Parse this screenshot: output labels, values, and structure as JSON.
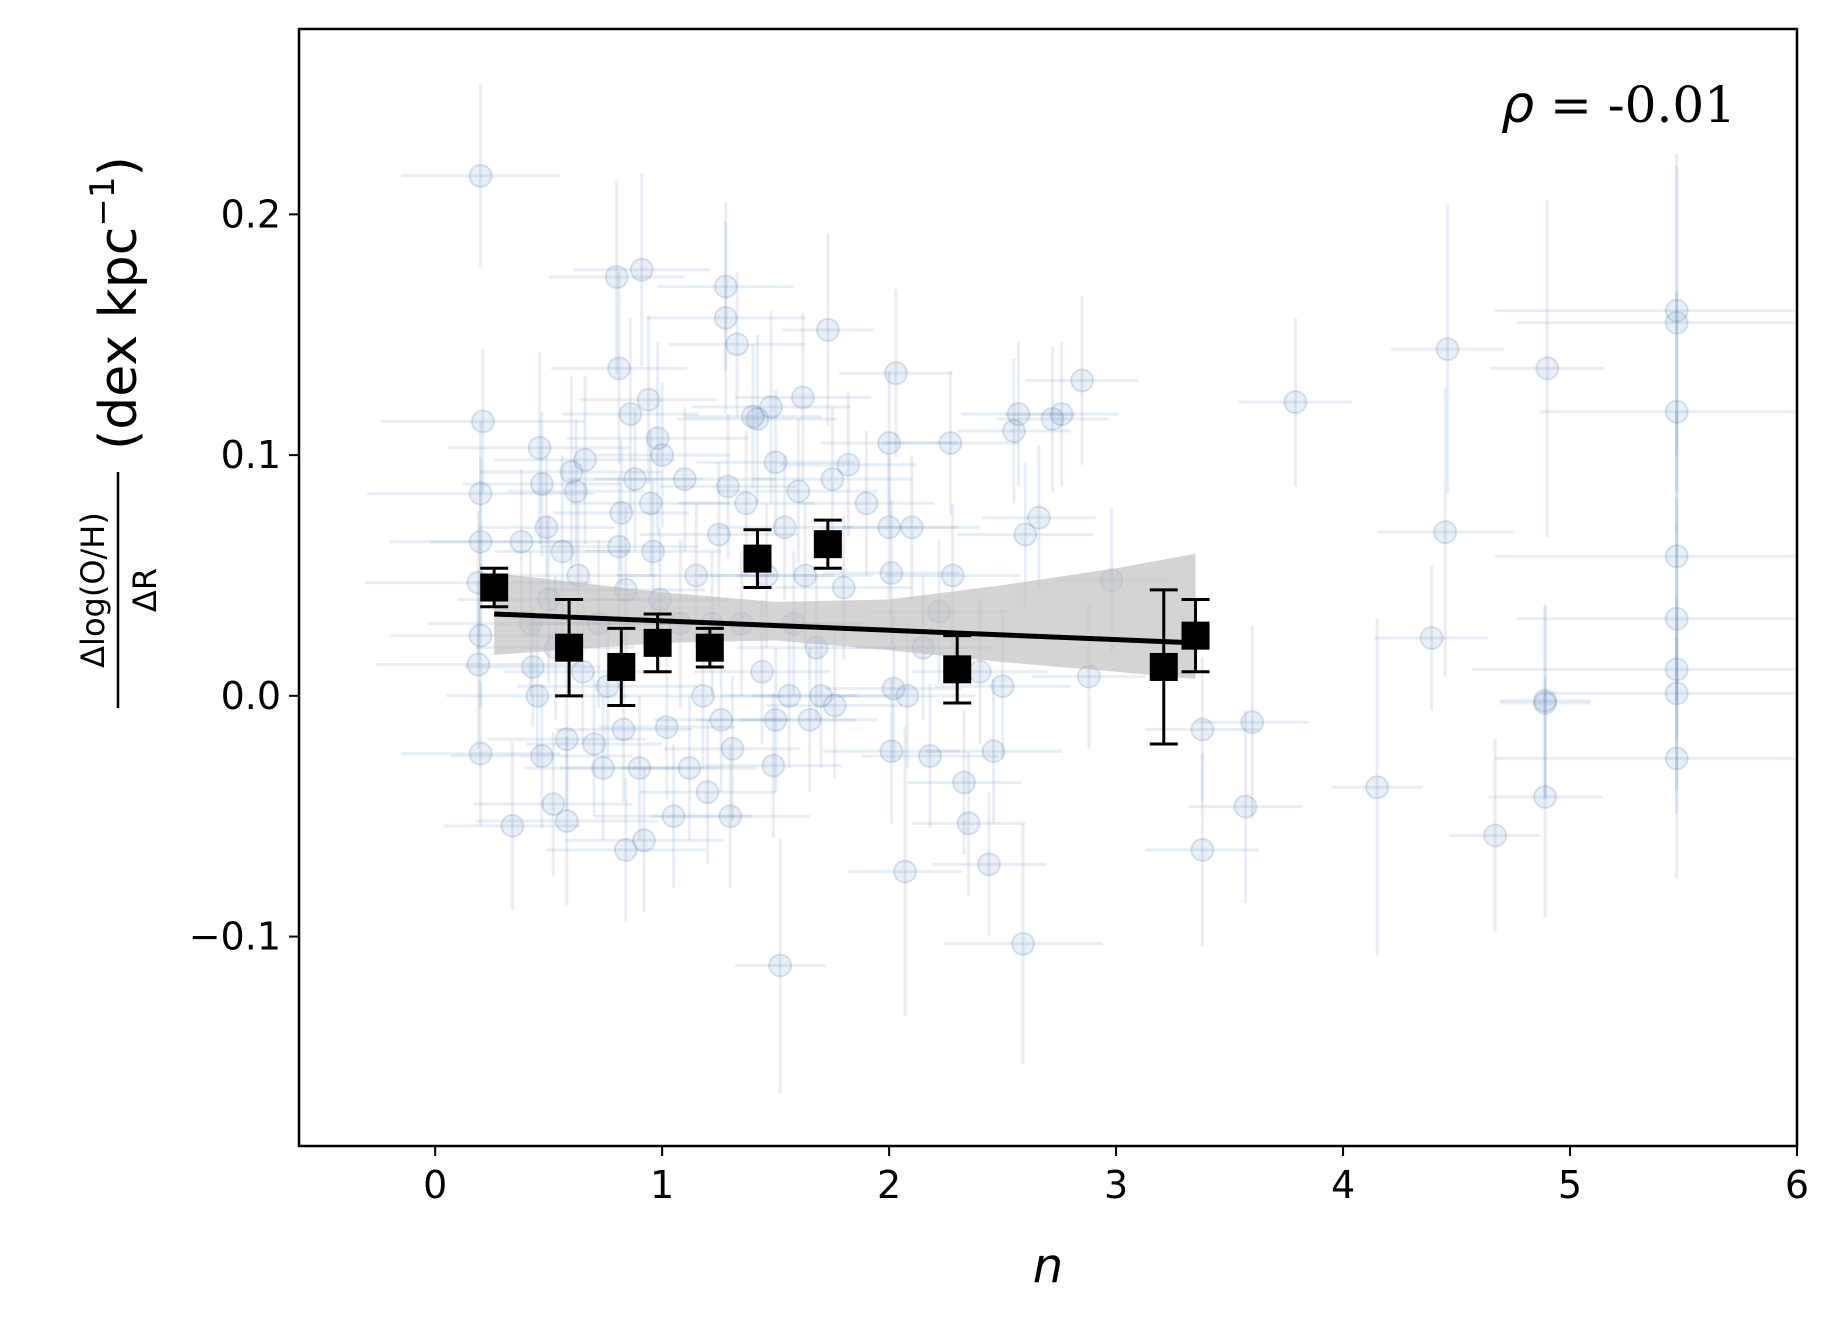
{
  "chart_data": {
    "type": "scatter",
    "xlabel": "n",
    "ylabel": {
      "numerator": "Δlog(O/H)",
      "denominator": "ΔR",
      "units": "(dex kpc",
      "exponent": "−1",
      "close": ")"
    },
    "annotation": {
      "symbol": "ρ",
      "text": " = -0.01"
    },
    "xlim": [
      -0.6,
      6.0
    ],
    "ylim": [
      -0.187,
      0.277
    ],
    "xticks": [
      0,
      1,
      2,
      3,
      4,
      5,
      6
    ],
    "xtick_labels": [
      "0",
      "1",
      "2",
      "3",
      "4",
      "5",
      "6"
    ],
    "yticks": [
      -0.1,
      0.0,
      0.1,
      0.2
    ],
    "ytick_labels": [
      "−0.1",
      "0.0",
      "0.1",
      "0.2"
    ],
    "colors": {
      "points": "#4a7fb5",
      "binned": "#000000",
      "band": "#bdbdbd",
      "fit": "#000000"
    },
    "fit_line": {
      "x": [
        0.26,
        3.35
      ],
      "y": [
        0.034,
        0.022
      ]
    },
    "confidence_band": {
      "x": [
        0.26,
        1.0,
        1.5,
        2.0,
        2.5,
        3.0,
        3.35
      ],
      "lower": [
        0.017,
        0.022,
        0.023,
        0.019,
        0.014,
        0.01,
        0.007
      ],
      "upper": [
        0.051,
        0.043,
        0.039,
        0.04,
        0.046,
        0.053,
        0.059
      ]
    },
    "binned": [
      {
        "x": 0.26,
        "y": 0.045,
        "yerr": 0.008
      },
      {
        "x": 0.59,
        "y": 0.02,
        "yerr": 0.02
      },
      {
        "x": 0.82,
        "y": 0.012,
        "yerr": 0.016
      },
      {
        "x": 0.98,
        "y": 0.022,
        "yerr": 0.012
      },
      {
        "x": 1.21,
        "y": 0.02,
        "yerr": 0.008
      },
      {
        "x": 1.42,
        "y": 0.057,
        "yerr": 0.012
      },
      {
        "x": 1.73,
        "y": 0.063,
        "yerr": 0.01
      },
      {
        "x": 2.3,
        "y": 0.011,
        "yerr": 0.014
      },
      {
        "x": 3.21,
        "y": 0.012,
        "yerr": 0.032
      },
      {
        "x": 3.35,
        "y": 0.025,
        "yerr": 0.015
      }
    ],
    "points": [
      {
        "x": 0.2,
        "y": 0.216,
        "xerr": 0.35,
        "yerr": 0.038
      },
      {
        "x": 0.21,
        "y": 0.114,
        "xerr": 0.45,
        "yerr": 0.03
      },
      {
        "x": 0.2,
        "y": 0.084,
        "xerr": 0.5,
        "yerr": 0.03
      },
      {
        "x": 0.2,
        "y": 0.064,
        "xerr": 0.4,
        "yerr": 0.035
      },
      {
        "x": 0.19,
        "y": 0.047,
        "xerr": 0.5,
        "yerr": 0.03
      },
      {
        "x": 0.2,
        "y": 0.025,
        "xerr": 0.4,
        "yerr": 0.03
      },
      {
        "x": 0.19,
        "y": 0.013,
        "xerr": 0.45,
        "yerr": 0.035
      },
      {
        "x": 0.2,
        "y": -0.024,
        "xerr": 0.35,
        "yerr": 0.03
      },
      {
        "x": 0.34,
        "y": -0.054,
        "xerr": 0.3,
        "yerr": 0.035
      },
      {
        "x": 0.38,
        "y": 0.064,
        "xerr": 0.4,
        "yerr": 0.03
      },
      {
        "x": 0.42,
        "y": 0.03,
        "xerr": 0.45,
        "yerr": 0.03
      },
      {
        "x": 0.43,
        "y": 0.012,
        "xerr": 0.3,
        "yerr": 0.025
      },
      {
        "x": 0.45,
        "y": 0.0,
        "xerr": 0.4,
        "yerr": 0.03
      },
      {
        "x": 0.46,
        "y": 0.103,
        "xerr": 0.4,
        "yerr": 0.04
      },
      {
        "x": 0.47,
        "y": 0.088,
        "xerr": 0.35,
        "yerr": 0.03
      },
      {
        "x": 0.49,
        "y": 0.07,
        "xerr": 0.3,
        "yerr": 0.03
      },
      {
        "x": 0.47,
        "y": -0.025,
        "xerr": 0.4,
        "yerr": 0.03
      },
      {
        "x": 0.5,
        "y": 0.04,
        "xerr": 0.4,
        "yerr": 0.035
      },
      {
        "x": 0.53,
        "y": 0.02,
        "xerr": 0.35,
        "yerr": 0.03
      },
      {
        "x": 0.52,
        "y": -0.045,
        "xerr": 0.35,
        "yerr": 0.03
      },
      {
        "x": 0.56,
        "y": 0.06,
        "xerr": 0.3,
        "yerr": 0.04
      },
      {
        "x": 0.58,
        "y": -0.018,
        "xerr": 0.35,
        "yerr": 0.03
      },
      {
        "x": 0.58,
        "y": -0.052,
        "xerr": 0.4,
        "yerr": 0.035
      },
      {
        "x": 0.6,
        "y": 0.093,
        "xerr": 0.4,
        "yerr": 0.04
      },
      {
        "x": 0.62,
        "y": 0.085,
        "xerr": 0.3,
        "yerr": 0.03
      },
      {
        "x": 0.63,
        "y": 0.05,
        "xerr": 0.35,
        "yerr": 0.03
      },
      {
        "x": 0.65,
        "y": 0.01,
        "xerr": 0.35,
        "yerr": 0.03
      },
      {
        "x": 0.66,
        "y": 0.098,
        "xerr": 0.4,
        "yerr": 0.035
      },
      {
        "x": 0.7,
        "y": -0.02,
        "xerr": 0.3,
        "yerr": 0.03
      },
      {
        "x": 0.72,
        "y": 0.03,
        "xerr": 0.3,
        "yerr": 0.035
      },
      {
        "x": 0.74,
        "y": -0.03,
        "xerr": 0.35,
        "yerr": 0.03
      },
      {
        "x": 0.76,
        "y": 0.004,
        "xerr": 0.4,
        "yerr": 0.03
      },
      {
        "x": 0.8,
        "y": 0.174,
        "xerr": 0.3,
        "yerr": 0.04
      },
      {
        "x": 0.81,
        "y": 0.136,
        "xerr": 0.3,
        "yerr": 0.04
      },
      {
        "x": 0.81,
        "y": 0.062,
        "xerr": 0.35,
        "yerr": 0.03
      },
      {
        "x": 0.82,
        "y": 0.076,
        "xerr": 0.3,
        "yerr": 0.03
      },
      {
        "x": 0.84,
        "y": 0.044,
        "xerr": 0.35,
        "yerr": 0.035
      },
      {
        "x": 0.83,
        "y": -0.014,
        "xerr": 0.3,
        "yerr": 0.03
      },
      {
        "x": 0.84,
        "y": -0.064,
        "xerr": 0.35,
        "yerr": 0.03
      },
      {
        "x": 0.86,
        "y": 0.117,
        "xerr": 0.3,
        "yerr": 0.04
      },
      {
        "x": 0.88,
        "y": 0.09,
        "xerr": 0.3,
        "yerr": 0.03
      },
      {
        "x": 0.9,
        "y": -0.03,
        "xerr": 0.35,
        "yerr": 0.03
      },
      {
        "x": 0.91,
        "y": 0.177,
        "xerr": 0.3,
        "yerr": 0.04
      },
      {
        "x": 0.92,
        "y": -0.06,
        "xerr": 0.35,
        "yerr": 0.03
      },
      {
        "x": 0.94,
        "y": 0.123,
        "xerr": 0.3,
        "yerr": 0.035
      },
      {
        "x": 0.95,
        "y": 0.08,
        "xerr": 0.35,
        "yerr": 0.03
      },
      {
        "x": 0.96,
        "y": 0.06,
        "xerr": 0.3,
        "yerr": 0.03
      },
      {
        "x": 0.98,
        "y": 0.107,
        "xerr": 0.4,
        "yerr": 0.04
      },
      {
        "x": 0.99,
        "y": 0.04,
        "xerr": 0.3,
        "yerr": 0.03
      },
      {
        "x": 1.0,
        "y": 0.1,
        "xerr": 0.3,
        "yerr": 0.03
      },
      {
        "x": 1.02,
        "y": -0.013,
        "xerr": 0.3,
        "yerr": 0.03
      },
      {
        "x": 1.05,
        "y": -0.05,
        "xerr": 0.35,
        "yerr": 0.03
      },
      {
        "x": 1.08,
        "y": 0.03,
        "xerr": 0.3,
        "yerr": 0.035
      },
      {
        "x": 1.1,
        "y": 0.09,
        "xerr": 0.4,
        "yerr": 0.03
      },
      {
        "x": 1.12,
        "y": -0.03,
        "xerr": 0.3,
        "yerr": 0.03
      },
      {
        "x": 1.15,
        "y": 0.05,
        "xerr": 0.35,
        "yerr": 0.03
      },
      {
        "x": 1.18,
        "y": 0.0,
        "xerr": 0.35,
        "yerr": 0.03
      },
      {
        "x": 1.2,
        "y": -0.04,
        "xerr": 0.3,
        "yerr": 0.03
      },
      {
        "x": 1.22,
        "y": 0.03,
        "xerr": 0.3,
        "yerr": 0.03
      },
      {
        "x": 1.25,
        "y": 0.067,
        "xerr": 0.35,
        "yerr": 0.03
      },
      {
        "x": 1.26,
        "y": -0.01,
        "xerr": 0.3,
        "yerr": 0.03
      },
      {
        "x": 1.28,
        "y": 0.17,
        "xerr": 0.3,
        "yerr": 0.035
      },
      {
        "x": 1.28,
        "y": 0.157,
        "xerr": 0.35,
        "yerr": 0.04
      },
      {
        "x": 1.29,
        "y": 0.087,
        "xerr": 0.3,
        "yerr": 0.03
      },
      {
        "x": 1.3,
        "y": -0.05,
        "xerr": 0.35,
        "yerr": 0.03
      },
      {
        "x": 1.31,
        "y": -0.022,
        "xerr": 0.3,
        "yerr": 0.03
      },
      {
        "x": 1.33,
        "y": 0.146,
        "xerr": 0.3,
        "yerr": 0.03
      },
      {
        "x": 1.35,
        "y": 0.03,
        "xerr": 0.35,
        "yerr": 0.03
      },
      {
        "x": 1.37,
        "y": 0.08,
        "xerr": 0.3,
        "yerr": 0.03
      },
      {
        "x": 1.4,
        "y": 0.116,
        "xerr": 0.3,
        "yerr": 0.03
      },
      {
        "x": 1.42,
        "y": 0.115,
        "xerr": 0.35,
        "yerr": 0.035
      },
      {
        "x": 1.44,
        "y": 0.01,
        "xerr": 0.3,
        "yerr": 0.03
      },
      {
        "x": 1.46,
        "y": 0.05,
        "xerr": 0.3,
        "yerr": 0.03
      },
      {
        "x": 1.48,
        "y": 0.12,
        "xerr": 0.35,
        "yerr": 0.04
      },
      {
        "x": 1.49,
        "y": -0.029,
        "xerr": 0.3,
        "yerr": 0.03
      },
      {
        "x": 1.5,
        "y": -0.01,
        "xerr": 0.35,
        "yerr": 0.03
      },
      {
        "x": 1.5,
        "y": 0.097,
        "xerr": 0.35,
        "yerr": 0.03
      },
      {
        "x": 1.52,
        "y": -0.112,
        "xerr": 0.2,
        "yerr": 0.053
      },
      {
        "x": 1.54,
        "y": 0.07,
        "xerr": 0.3,
        "yerr": 0.03
      },
      {
        "x": 1.56,
        "y": 0.0,
        "xerr": 0.3,
        "yerr": 0.03
      },
      {
        "x": 1.58,
        "y": 0.03,
        "xerr": 0.3,
        "yerr": 0.03
      },
      {
        "x": 1.6,
        "y": 0.085,
        "xerr": 0.35,
        "yerr": 0.03
      },
      {
        "x": 1.62,
        "y": 0.124,
        "xerr": 0.3,
        "yerr": 0.035
      },
      {
        "x": 1.63,
        "y": 0.05,
        "xerr": 0.3,
        "yerr": 0.03
      },
      {
        "x": 1.65,
        "y": -0.01,
        "xerr": 0.3,
        "yerr": 0.03
      },
      {
        "x": 1.68,
        "y": 0.02,
        "xerr": 0.35,
        "yerr": 0.03
      },
      {
        "x": 1.7,
        "y": 0.0,
        "xerr": 0.3,
        "yerr": 0.03
      },
      {
        "x": 1.73,
        "y": 0.152,
        "xerr": 0.2,
        "yerr": 0.04
      },
      {
        "x": 1.75,
        "y": 0.09,
        "xerr": 0.35,
        "yerr": 0.03
      },
      {
        "x": 1.76,
        "y": -0.004,
        "xerr": 0.3,
        "yerr": 0.03
      },
      {
        "x": 1.8,
        "y": 0.045,
        "xerr": 0.3,
        "yerr": 0.03
      },
      {
        "x": 1.82,
        "y": 0.096,
        "xerr": 0.3,
        "yerr": 0.03
      },
      {
        "x": 1.9,
        "y": 0.08,
        "xerr": 0.3,
        "yerr": 0.03
      },
      {
        "x": 2.0,
        "y": 0.07,
        "xerr": 0.3,
        "yerr": 0.03
      },
      {
        "x": 2.0,
        "y": 0.105,
        "xerr": 0.3,
        "yerr": 0.03
      },
      {
        "x": 2.01,
        "y": 0.051,
        "xerr": 0.3,
        "yerr": 0.03
      },
      {
        "x": 2.02,
        "y": 0.003,
        "xerr": 0.3,
        "yerr": 0.03
      },
      {
        "x": 2.01,
        "y": -0.023,
        "xerr": 0.3,
        "yerr": 0.03
      },
      {
        "x": 2.03,
        "y": 0.134,
        "xerr": 0.25,
        "yerr": 0.035
      },
      {
        "x": 2.07,
        "y": -0.073,
        "xerr": 0.25,
        "yerr": 0.06
      },
      {
        "x": 2.08,
        "y": 0.0,
        "xerr": 0.3,
        "yerr": 0.03
      },
      {
        "x": 2.1,
        "y": 0.07,
        "xerr": 0.3,
        "yerr": 0.03
      },
      {
        "x": 2.15,
        "y": 0.02,
        "xerr": 0.3,
        "yerr": 0.03
      },
      {
        "x": 2.18,
        "y": -0.025,
        "xerr": 0.3,
        "yerr": 0.03
      },
      {
        "x": 2.22,
        "y": 0.035,
        "xerr": 0.3,
        "yerr": 0.03
      },
      {
        "x": 2.27,
        "y": 0.105,
        "xerr": 0.3,
        "yerr": 0.03
      },
      {
        "x": 2.28,
        "y": 0.05,
        "xerr": 0.3,
        "yerr": 0.03
      },
      {
        "x": 2.33,
        "y": -0.036,
        "xerr": 0.25,
        "yerr": 0.03
      },
      {
        "x": 2.35,
        "y": -0.053,
        "xerr": 0.25,
        "yerr": 0.03
      },
      {
        "x": 2.4,
        "y": 0.01,
        "xerr": 0.3,
        "yerr": 0.03
      },
      {
        "x": 2.44,
        "y": -0.07,
        "xerr": 0.25,
        "yerr": 0.03
      },
      {
        "x": 2.46,
        "y": -0.023,
        "xerr": 0.3,
        "yerr": 0.03
      },
      {
        "x": 2.5,
        "y": 0.004,
        "xerr": 0.3,
        "yerr": 0.03
      },
      {
        "x": 2.55,
        "y": 0.11,
        "xerr": 0.25,
        "yerr": 0.03
      },
      {
        "x": 2.57,
        "y": 0.117,
        "xerr": 0.25,
        "yerr": 0.03
      },
      {
        "x": 2.59,
        "y": -0.103,
        "xerr": 0.35,
        "yerr": 0.05
      },
      {
        "x": 2.6,
        "y": 0.067,
        "xerr": 0.3,
        "yerr": 0.03
      },
      {
        "x": 2.66,
        "y": 0.074,
        "xerr": 0.25,
        "yerr": 0.03
      },
      {
        "x": 2.72,
        "y": 0.115,
        "xerr": 0.25,
        "yerr": 0.03
      },
      {
        "x": 2.76,
        "y": 0.117,
        "xerr": 0.25,
        "yerr": 0.03
      },
      {
        "x": 2.85,
        "y": 0.131,
        "xerr": 0.25,
        "yerr": 0.035
      },
      {
        "x": 2.88,
        "y": 0.008,
        "xerr": 0.25,
        "yerr": 0.03
      },
      {
        "x": 2.98,
        "y": 0.048,
        "xerr": 0.25,
        "yerr": 0.03
      },
      {
        "x": 3.38,
        "y": -0.064,
        "xerr": 0.25,
        "yerr": 0.04
      },
      {
        "x": 3.38,
        "y": -0.014,
        "xerr": 0.25,
        "yerr": 0.03
      },
      {
        "x": 3.57,
        "y": -0.046,
        "xerr": 0.25,
        "yerr": 0.04
      },
      {
        "x": 3.6,
        "y": -0.011,
        "xerr": 0.25,
        "yerr": 0.04
      },
      {
        "x": 3.79,
        "y": 0.122,
        "xerr": 0.25,
        "yerr": 0.035
      },
      {
        "x": 4.15,
        "y": -0.038,
        "xerr": 0.2,
        "yerr": 0.07
      },
      {
        "x": 4.39,
        "y": 0.024,
        "xerr": 0.25,
        "yerr": 0.03
      },
      {
        "x": 4.45,
        "y": 0.068,
        "xerr": 0.3,
        "yerr": 0.06
      },
      {
        "x": 4.46,
        "y": 0.144,
        "xerr": 0.25,
        "yerr": 0.06
      },
      {
        "x": 4.67,
        "y": -0.058,
        "xerr": 0.2,
        "yerr": 0.04
      },
      {
        "x": 4.89,
        "y": -0.003,
        "xerr": 0.2,
        "yerr": 0.04
      },
      {
        "x": 4.89,
        "y": -0.042,
        "xerr": 0.25,
        "yerr": 0.05
      },
      {
        "x": 4.9,
        "y": 0.136,
        "xerr": 0.25,
        "yerr": 0.07
      },
      {
        "x": 4.89,
        "y": -0.002,
        "xerr": 0.2,
        "yerr": 0.04
      },
      {
        "x": 5.47,
        "y": 0.16,
        "xerr": 0.8,
        "yerr": 0.06
      },
      {
        "x": 5.47,
        "y": 0.155,
        "xerr": 0.7,
        "yerr": 0.07
      },
      {
        "x": 5.47,
        "y": 0.118,
        "xerr": 0.6,
        "yerr": 0.05
      },
      {
        "x": 5.47,
        "y": 0.058,
        "xerr": 0.8,
        "yerr": 0.06
      },
      {
        "x": 5.47,
        "y": 0.032,
        "xerr": 0.7,
        "yerr": 0.05
      },
      {
        "x": 5.47,
        "y": 0.011,
        "xerr": 0.9,
        "yerr": 0.06
      },
      {
        "x": 5.47,
        "y": 0.001,
        "xerr": 0.6,
        "yerr": 0.04
      },
      {
        "x": 5.47,
        "y": -0.026,
        "xerr": 0.8,
        "yerr": 0.05
      }
    ]
  }
}
